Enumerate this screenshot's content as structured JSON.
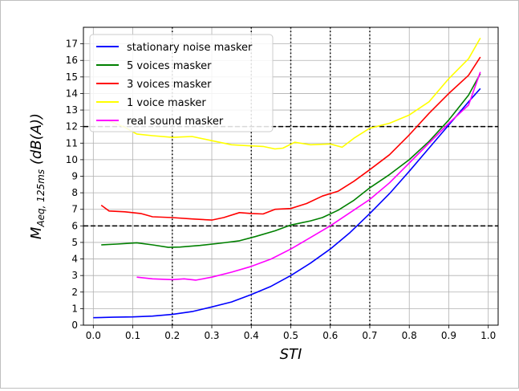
{
  "chart_data": {
    "type": "line",
    "xlabel": "STI",
    "ylabel_main": "M",
    "ylabel_sub": "Aeq, 125ms",
    "ylabel_unit": " (dB(A))",
    "xlim": [
      -0.025,
      1.025
    ],
    "ylim": [
      0,
      18
    ],
    "x_ticks": [
      "0.0",
      "0.1",
      "0.2",
      "0.3",
      "0.4",
      "0.5",
      "0.6",
      "0.7",
      "0.8",
      "0.9",
      "1.0"
    ],
    "y_ticks": [
      "0",
      "1",
      "2",
      "3",
      "4",
      "5",
      "6",
      "7",
      "8",
      "9",
      "10",
      "11",
      "12",
      "13",
      "14",
      "15",
      "16",
      "17"
    ],
    "grid": true,
    "legend_position": "top-left",
    "ref_hlines": [
      6,
      12
    ],
    "ref_vlines": [
      0.2,
      0.4,
      0.5,
      0.6,
      0.7
    ],
    "series": [
      {
        "name": "stationary noise masker",
        "color": "#0000ff",
        "points": [
          [
            0.0,
            0.45
          ],
          [
            0.05,
            0.48
          ],
          [
            0.1,
            0.5
          ],
          [
            0.15,
            0.55
          ],
          [
            0.2,
            0.65
          ],
          [
            0.25,
            0.82
          ],
          [
            0.3,
            1.1
          ],
          [
            0.35,
            1.4
          ],
          [
            0.4,
            1.85
          ],
          [
            0.45,
            2.35
          ],
          [
            0.5,
            3.0
          ],
          [
            0.55,
            3.75
          ],
          [
            0.6,
            4.6
          ],
          [
            0.65,
            5.6
          ],
          [
            0.7,
            6.75
          ],
          [
            0.75,
            7.95
          ],
          [
            0.8,
            9.3
          ],
          [
            0.85,
            10.7
          ],
          [
            0.9,
            12.1
          ],
          [
            0.95,
            13.5
          ],
          [
            0.98,
            14.3
          ]
        ]
      },
      {
        "name": "5 voices masker",
        "color": "#008000",
        "points": [
          [
            0.02,
            4.85
          ],
          [
            0.06,
            4.9
          ],
          [
            0.11,
            4.98
          ],
          [
            0.15,
            4.85
          ],
          [
            0.19,
            4.7
          ],
          [
            0.22,
            4.72
          ],
          [
            0.27,
            4.82
          ],
          [
            0.32,
            4.95
          ],
          [
            0.37,
            5.1
          ],
          [
            0.41,
            5.35
          ],
          [
            0.46,
            5.7
          ],
          [
            0.5,
            6.05
          ],
          [
            0.55,
            6.3
          ],
          [
            0.58,
            6.5
          ],
          [
            0.62,
            6.95
          ],
          [
            0.66,
            7.55
          ],
          [
            0.7,
            8.3
          ],
          [
            0.75,
            9.1
          ],
          [
            0.8,
            10.0
          ],
          [
            0.85,
            11.1
          ],
          [
            0.9,
            12.4
          ],
          [
            0.95,
            13.9
          ],
          [
            0.98,
            15.2
          ]
        ]
      },
      {
        "name": "3 voices masker",
        "color": "#ff0000",
        "points": [
          [
            0.02,
            7.25
          ],
          [
            0.04,
            6.9
          ],
          [
            0.08,
            6.85
          ],
          [
            0.12,
            6.75
          ],
          [
            0.15,
            6.55
          ],
          [
            0.2,
            6.5
          ],
          [
            0.25,
            6.42
          ],
          [
            0.3,
            6.35
          ],
          [
            0.33,
            6.5
          ],
          [
            0.37,
            6.8
          ],
          [
            0.4,
            6.75
          ],
          [
            0.43,
            6.72
          ],
          [
            0.46,
            7.0
          ],
          [
            0.5,
            7.05
          ],
          [
            0.54,
            7.35
          ],
          [
            0.58,
            7.8
          ],
          [
            0.62,
            8.1
          ],
          [
            0.66,
            8.7
          ],
          [
            0.7,
            9.4
          ],
          [
            0.75,
            10.3
          ],
          [
            0.8,
            11.5
          ],
          [
            0.85,
            12.8
          ],
          [
            0.9,
            14.0
          ],
          [
            0.95,
            15.1
          ],
          [
            0.98,
            16.2
          ]
        ]
      },
      {
        "name": "1 voice masker",
        "color": "#ffff00",
        "points": [
          [
            0.04,
            12.35
          ],
          [
            0.08,
            11.95
          ],
          [
            0.11,
            11.55
          ],
          [
            0.15,
            11.45
          ],
          [
            0.2,
            11.35
          ],
          [
            0.25,
            11.4
          ],
          [
            0.3,
            11.15
          ],
          [
            0.35,
            10.9
          ],
          [
            0.39,
            10.85
          ],
          [
            0.43,
            10.8
          ],
          [
            0.46,
            10.65
          ],
          [
            0.48,
            10.7
          ],
          [
            0.51,
            11.05
          ],
          [
            0.55,
            10.9
          ],
          [
            0.6,
            10.95
          ],
          [
            0.63,
            10.75
          ],
          [
            0.66,
            11.3
          ],
          [
            0.7,
            11.9
          ],
          [
            0.75,
            12.2
          ],
          [
            0.8,
            12.7
          ],
          [
            0.85,
            13.5
          ],
          [
            0.9,
            14.9
          ],
          [
            0.95,
            16.1
          ],
          [
            0.98,
            17.35
          ]
        ]
      },
      {
        "name": "real sound masker",
        "color": "#ff00ff",
        "points": [
          [
            0.11,
            2.9
          ],
          [
            0.15,
            2.8
          ],
          [
            0.2,
            2.75
          ],
          [
            0.23,
            2.8
          ],
          [
            0.26,
            2.72
          ],
          [
            0.3,
            2.9
          ],
          [
            0.35,
            3.2
          ],
          [
            0.4,
            3.55
          ],
          [
            0.45,
            4.0
          ],
          [
            0.5,
            4.6
          ],
          [
            0.55,
            5.3
          ],
          [
            0.6,
            6.0
          ],
          [
            0.65,
            6.8
          ],
          [
            0.7,
            7.6
          ],
          [
            0.75,
            8.6
          ],
          [
            0.8,
            9.8
          ],
          [
            0.85,
            11.0
          ],
          [
            0.9,
            12.2
          ],
          [
            0.95,
            13.3
          ],
          [
            0.98,
            15.3
          ]
        ]
      }
    ]
  }
}
